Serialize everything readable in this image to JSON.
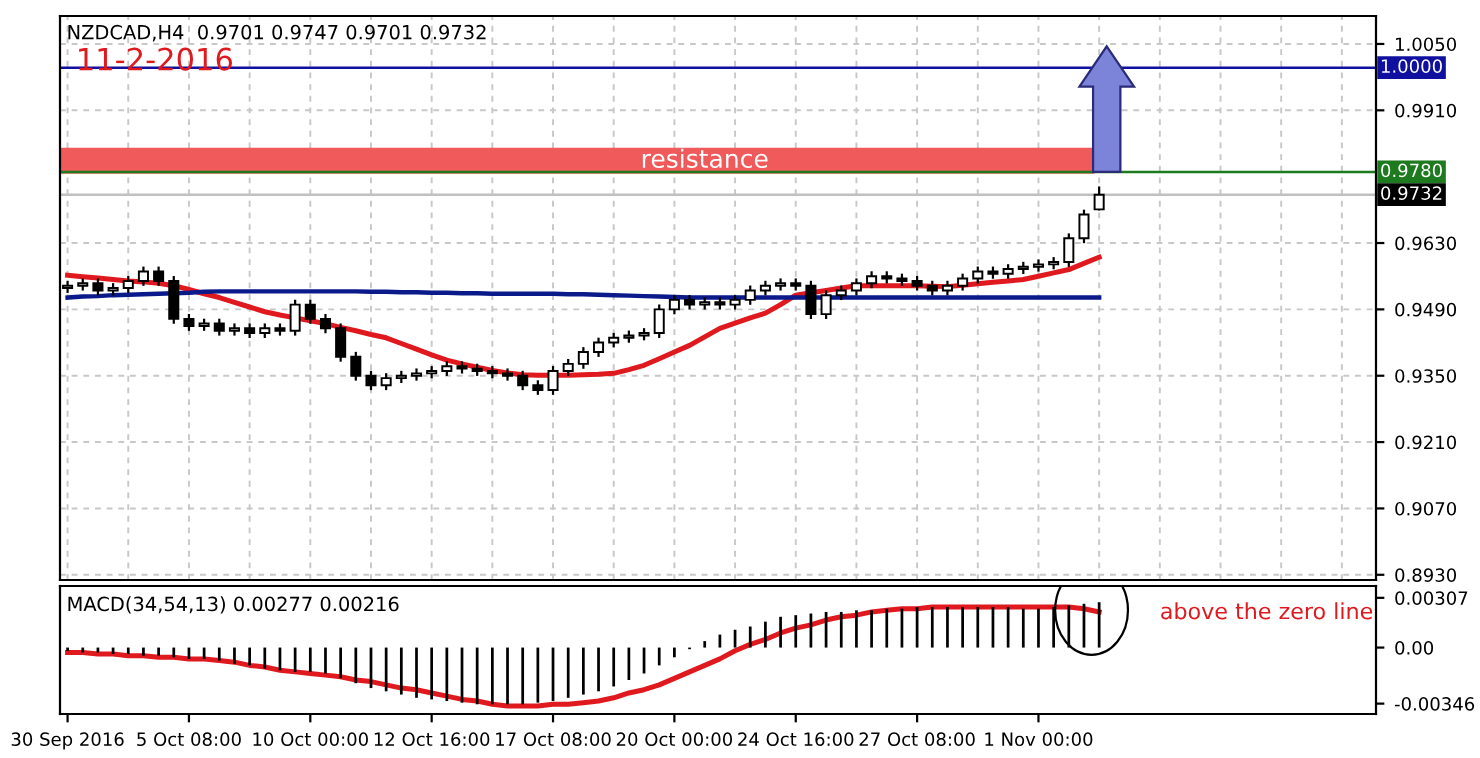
{
  "chart_data": [
    {
      "type": "candlestick",
      "title": "11-2-2016",
      "subtitle": "NZDCAD,H4  0.9701 0.9747 0.9701 0.9732",
      "categories": [
        null,
        null,
        null,
        null,
        null,
        null,
        null,
        null,
        null,
        null,
        null,
        null,
        null,
        null,
        null,
        null,
        null,
        null,
        null,
        null,
        null,
        null,
        null,
        null,
        null,
        null,
        null,
        null,
        null,
        null,
        null,
        null,
        null,
        null,
        null,
        null,
        null,
        null,
        null,
        null,
        null,
        null,
        null,
        null,
        null,
        null,
        null,
        null,
        null,
        null,
        null,
        null,
        null,
        null,
        null,
        null,
        null,
        null,
        null,
        null,
        null,
        null,
        null,
        null,
        null,
        null,
        null,
        null,
        null
      ],
      "ohlc": [
        [
          0.9535,
          0.9548,
          0.9527,
          0.954
        ],
        [
          0.954,
          0.9553,
          0.9532,
          0.9545
        ],
        [
          0.9545,
          0.9553,
          0.9522,
          0.953
        ],
        [
          0.953,
          0.9543,
          0.9522,
          0.9535
        ],
        [
          0.9535,
          0.9558,
          0.9527,
          0.955
        ],
        [
          0.955,
          0.9578,
          0.9542,
          0.957
        ],
        [
          0.957,
          0.9578,
          0.9542,
          0.955
        ],
        [
          0.955,
          0.9558,
          0.9462,
          0.947
        ],
        [
          0.947,
          0.9478,
          0.9447,
          0.9455
        ],
        [
          0.9455,
          0.9468,
          0.9447,
          0.946
        ],
        [
          0.946,
          0.9468,
          0.9437,
          0.9445
        ],
        [
          0.9445,
          0.9458,
          0.9437,
          0.945
        ],
        [
          0.945,
          0.9458,
          0.9432,
          0.944
        ],
        [
          0.944,
          0.9458,
          0.9432,
          0.945
        ],
        [
          0.945,
          0.9458,
          0.9437,
          0.9445
        ],
        [
          0.9445,
          0.9508,
          0.9437,
          0.95
        ],
        [
          0.95,
          0.9508,
          0.9462,
          0.947
        ],
        [
          0.947,
          0.9478,
          0.9442,
          0.945
        ],
        [
          0.945,
          0.9458,
          0.9382,
          0.939
        ],
        [
          0.939,
          0.9398,
          0.9342,
          0.935
        ],
        [
          0.935,
          0.9358,
          0.9322,
          0.933
        ],
        [
          0.933,
          0.9353,
          0.9322,
          0.9345
        ],
        [
          0.9345,
          0.9358,
          0.9337,
          0.935
        ],
        [
          0.935,
          0.9363,
          0.9342,
          0.9355
        ],
        [
          0.9355,
          0.9368,
          0.9347,
          0.936
        ],
        [
          0.936,
          0.9378,
          0.9352,
          0.937
        ],
        [
          0.937,
          0.9378,
          0.9357,
          0.9365
        ],
        [
          0.9365,
          0.9373,
          0.9352,
          0.936
        ],
        [
          0.936,
          0.9368,
          0.9347,
          0.9355
        ],
        [
          0.9355,
          0.9363,
          0.9342,
          0.935
        ],
        [
          0.935,
          0.9358,
          0.9322,
          0.933
        ],
        [
          0.933,
          0.9338,
          0.9312,
          0.932
        ],
        [
          0.932,
          0.9368,
          0.9312,
          0.936
        ],
        [
          0.936,
          0.9383,
          0.9352,
          0.9375
        ],
        [
          0.9375,
          0.9408,
          0.9367,
          0.94
        ],
        [
          0.94,
          0.9428,
          0.9392,
          0.942
        ],
        [
          0.942,
          0.9438,
          0.9412,
          0.943
        ],
        [
          0.943,
          0.9443,
          0.9422,
          0.9435
        ],
        [
          0.9435,
          0.9448,
          0.9427,
          0.944
        ],
        [
          0.944,
          0.9498,
          0.9432,
          0.949
        ],
        [
          0.949,
          0.9518,
          0.9482,
          0.951
        ],
        [
          0.951,
          0.9518,
          0.9492,
          0.95
        ],
        [
          0.95,
          0.9513,
          0.9492,
          0.9505
        ],
        [
          0.9505,
          0.9513,
          0.9492,
          0.95
        ],
        [
          0.95,
          0.9518,
          0.9492,
          0.951
        ],
        [
          0.951,
          0.9538,
          0.9502,
          0.953
        ],
        [
          0.953,
          0.9548,
          0.9522,
          0.954
        ],
        [
          0.954,
          0.9553,
          0.9532,
          0.9545
        ],
        [
          0.9545,
          0.9553,
          0.9532,
          0.954
        ],
        [
          0.954,
          0.9548,
          0.9472,
          0.948
        ],
        [
          0.948,
          0.9528,
          0.9472,
          0.952
        ],
        [
          0.952,
          0.9538,
          0.9512,
          0.953
        ],
        [
          0.953,
          0.9553,
          0.9522,
          0.9545
        ],
        [
          0.9545,
          0.9568,
          0.9537,
          0.956
        ],
        [
          0.956,
          0.9568,
          0.9547,
          0.9555
        ],
        [
          0.9555,
          0.9563,
          0.9542,
          0.955
        ],
        [
          0.955,
          0.9558,
          0.9532,
          0.954
        ],
        [
          0.954,
          0.9548,
          0.9522,
          0.953
        ],
        [
          0.953,
          0.9548,
          0.9522,
          0.954
        ],
        [
          0.954,
          0.9563,
          0.9532,
          0.9555
        ],
        [
          0.9555,
          0.9578,
          0.9547,
          0.957
        ],
        [
          0.957,
          0.9578,
          0.9557,
          0.9565
        ],
        [
          0.9565,
          0.9583,
          0.9557,
          0.9575
        ],
        [
          0.9575,
          0.9588,
          0.9567,
          0.958
        ],
        [
          0.958,
          0.9593,
          0.9572,
          0.9585
        ],
        [
          0.9585,
          0.9598,
          0.9577,
          0.959
        ],
        [
          0.959,
          0.9648,
          0.9582,
          0.964
        ],
        [
          0.964,
          0.9698,
          0.9632,
          0.969
        ],
        [
          0.9701,
          0.9747,
          0.9701,
          0.9732
        ]
      ],
      "series": [
        {
          "type": "line",
          "color": "#e0191e",
          "values": [
            0.9562,
            0.9559,
            0.9556,
            0.9553,
            0.955,
            0.9548,
            0.9545,
            0.954,
            0.9532,
            0.9523,
            0.9515,
            0.9505,
            0.9495,
            0.9485,
            0.9478,
            0.9472,
            0.9466,
            0.946,
            0.9452,
            0.9445,
            0.9437,
            0.943,
            0.9418,
            0.9406,
            0.9394,
            0.9383,
            0.9375,
            0.9368,
            0.9361,
            0.9356,
            0.9352,
            0.9351,
            0.9351,
            0.9351,
            0.9352,
            0.9353,
            0.9355,
            0.9363,
            0.9372,
            0.9386,
            0.94,
            0.9414,
            0.9432,
            0.945,
            0.9461,
            0.9472,
            0.9482,
            0.95,
            0.952,
            0.9525,
            0.953,
            0.9535,
            0.954,
            0.954,
            0.954,
            0.954,
            0.954,
            0.9539,
            0.9538,
            0.9541,
            0.9544,
            0.9547,
            0.955,
            0.9553,
            0.956,
            0.9567,
            0.9574,
            0.9587,
            0.96
          ]
        },
        {
          "type": "line",
          "color": "#0a1a8a",
          "values": [
            0.9515,
            0.9517,
            0.9518,
            0.952,
            0.9521,
            0.9522,
            0.9523,
            0.9524,
            0.9525,
            0.9527,
            0.9528,
            0.9528,
            0.9528,
            0.9528,
            0.9528,
            0.9528,
            0.9528,
            0.9528,
            0.9528,
            0.9528,
            0.9527,
            0.9527,
            0.9526,
            0.9526,
            0.9525,
            0.9525,
            0.9524,
            0.9524,
            0.9523,
            0.9523,
            0.9523,
            0.9523,
            0.9523,
            0.9522,
            0.9522,
            0.9521,
            0.952,
            0.9519,
            0.9518,
            0.9517,
            0.9516,
            0.9515,
            0.9515,
            0.9515,
            0.9515,
            0.9515,
            0.9515,
            0.9515,
            0.9515,
            0.9515,
            0.9515,
            0.9515,
            0.9515,
            0.9515,
            0.9515,
            0.9515,
            0.9515,
            0.9515,
            0.9515,
            0.9515,
            0.9515,
            0.9515,
            0.9515,
            0.9515,
            0.9515,
            0.9515,
            0.9515,
            0.9515,
            0.9515
          ]
        }
      ],
      "ylim": [
        0.8919,
        1.0109
      ],
      "yticks": [
        {
          "value": 0.893,
          "label": "0.8930"
        },
        {
          "value": 0.907,
          "label": "0.9070"
        },
        {
          "value": 0.921,
          "label": "0.9210"
        },
        {
          "value": 0.935,
          "label": "0.9350"
        },
        {
          "value": 0.949,
          "label": "0.9490"
        },
        {
          "value": 0.963,
          "label": "0.9630"
        },
        {
          "value": 0.991,
          "label": "0.9910"
        },
        {
          "value": 1.005,
          "label": "1.0050"
        }
      ],
      "ref_lines": [
        {
          "axis": "y",
          "value": 1.0,
          "label": "1.0000",
          "color": "#1010a0"
        },
        {
          "axis": "y",
          "value": 0.978,
          "label": "0.9780",
          "color": "#1e7a1e"
        },
        {
          "axis": "y",
          "value": 0.9732,
          "label": "0.9732",
          "color": "#c0c0c0"
        }
      ],
      "bands": [
        {
          "axis": "y",
          "from": 0.9776,
          "to": 0.9831,
          "label": "resistance",
          "color": "#f05a5a"
        }
      ],
      "grid": true,
      "tick_labels": "y"
    },
    {
      "type": "bar",
      "title": "MACD(34,54,13) 0.00277 0.00216",
      "categories": [
        "30 Sep 2016",
        null,
        null,
        null,
        null,
        null,
        null,
        null,
        "5 Oct 08:00",
        null,
        null,
        null,
        null,
        null,
        null,
        null,
        "10 Oct 00:00",
        null,
        null,
        null,
        null,
        null,
        null,
        null,
        "12 Oct 16:00",
        null,
        null,
        null,
        null,
        null,
        null,
        null,
        "17 Oct 08:00",
        null,
        null,
        null,
        null,
        null,
        null,
        null,
        "20 Oct 00:00",
        null,
        null,
        null,
        null,
        null,
        null,
        null,
        "24 Oct 16:00",
        null,
        null,
        null,
        null,
        null,
        null,
        null,
        "27 Oct 08:00",
        null,
        null,
        null,
        null,
        null,
        null,
        null,
        "1 Nov 00:00",
        null,
        null,
        null,
        null
      ],
      "series": [
        {
          "type": "bar",
          "color": "#000000",
          "values": [
            -0.0002,
            -0.0003,
            -0.0003,
            -0.0004,
            -0.0004,
            -0.0005,
            -0.0005,
            -0.0006,
            -0.0007,
            -0.0007,
            -0.0008,
            -0.001,
            -0.0011,
            -0.0013,
            -0.0014,
            -0.0015,
            -0.0015,
            -0.0016,
            -0.0019,
            -0.0022,
            -0.0025,
            -0.0027,
            -0.0029,
            -0.0031,
            -0.0032,
            -0.0033,
            -0.0034,
            -0.0035,
            -0.0035,
            -0.0035,
            -0.0035,
            -0.0034,
            -0.0033,
            -0.0031,
            -0.0029,
            -0.0027,
            -0.0024,
            -0.002,
            -0.0016,
            -0.0011,
            -0.0006,
            -0.0001,
            0.0004,
            0.0008,
            0.0011,
            0.0013,
            0.0016,
            0.0019,
            0.002,
            0.0021,
            0.0022,
            0.0022,
            0.0023,
            0.0023,
            0.0024,
            0.0024,
            0.0025,
            0.0025,
            0.0025,
            0.0025,
            0.0025,
            0.0025,
            0.0025,
            0.0024,
            0.0024,
            0.0025,
            0.0026,
            0.0027,
            0.0028
          ]
        },
        {
          "type": "line",
          "color": "#e0191e",
          "values": [
            -0.0003,
            -0.0003,
            -0.0004,
            -0.0004,
            -0.0005,
            -0.0005,
            -0.0006,
            -0.0006,
            -0.0007,
            -0.0007,
            -0.0008,
            -0.0009,
            -0.0011,
            -0.0012,
            -0.0014,
            -0.0015,
            -0.0016,
            -0.0017,
            -0.0018,
            -0.002,
            -0.0021,
            -0.0023,
            -0.0025,
            -0.0026,
            -0.0028,
            -0.003,
            -0.0032,
            -0.0033,
            -0.0035,
            -0.0036,
            -0.0036,
            -0.0036,
            -0.0035,
            -0.0035,
            -0.0034,
            -0.0033,
            -0.0031,
            -0.0028,
            -0.0026,
            -0.0023,
            -0.0019,
            -0.0015,
            -0.0011,
            -0.0007,
            -0.0002,
            0.0002,
            0.0005,
            0.0009,
            0.0012,
            0.0014,
            0.0017,
            0.0019,
            0.002,
            0.0022,
            0.0023,
            0.0024,
            0.0024,
            0.0025,
            0.0025,
            0.0025,
            0.0025,
            0.0025,
            0.0025,
            0.0025,
            0.0025,
            0.0025,
            0.0025,
            0.0024,
            0.0022
          ]
        }
      ],
      "ylim": [
        -0.0041,
        0.0038
      ],
      "yticks": [
        {
          "value": 0.00307,
          "label": "0.00307"
        },
        {
          "value": 0,
          "label": "0.00"
        },
        {
          "value": -0.00346,
          "label": "-0.00346"
        }
      ],
      "annotations": [
        "above the zero line"
      ],
      "grid": false
    }
  ]
}
